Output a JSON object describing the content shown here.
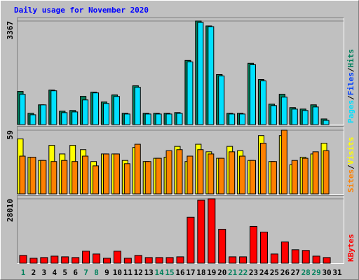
{
  "chart_data": [
    {
      "type": "bar",
      "title": "Daily usage for November 2020",
      "ylim": [
        0,
        3367
      ],
      "yticks": [
        3367
      ],
      "series": [
        {
          "name": "Hits",
          "color": "#00805c",
          "values": [
            1076,
            366,
            641,
            1122,
            435,
            458,
            916,
            1054,
            733,
            962,
            366,
            1260,
            366,
            366,
            366,
            389,
            2084,
            3367,
            3207,
            1626,
            366,
            366,
            1993,
            1466,
            664,
            985,
            550,
            504,
            641,
            183,
            null
          ]
        },
        {
          "name": "Files",
          "color": "#0040ff",
          "values": [
            1076,
            366,
            641,
            1122,
            435,
            458,
            916,
            1054,
            733,
            962,
            366,
            1260,
            366,
            366,
            366,
            389,
            2084,
            3367,
            3207,
            1626,
            366,
            366,
            1993,
            1466,
            664,
            985,
            550,
            504,
            641,
            183,
            null
          ]
        },
        {
          "name": "Pages",
          "color": "#00e0ff",
          "values": [
            985,
            320,
            641,
            1099,
            389,
            412,
            802,
            1031,
            687,
            916,
            344,
            1214,
            344,
            344,
            344,
            366,
            2038,
            3321,
            3184,
            1580,
            344,
            344,
            1947,
            1420,
            618,
            893,
            504,
            458,
            573,
            137,
            null
          ]
        }
      ],
      "legend_separator": "/"
    },
    {
      "type": "bar",
      "ylim": [
        0,
        59
      ],
      "yticks": [
        59
      ],
      "series": [
        {
          "name": "Visits",
          "color": "#ffff00",
          "values": [
            51,
            34,
            31,
            45,
            37,
            45,
            41,
            30,
            37,
            37,
            31,
            43,
            30,
            33,
            34,
            44,
            30,
            46,
            39,
            33,
            44,
            40,
            31,
            54,
            30,
            54,
            27,
            34,
            37,
            47,
            null
          ]
        },
        {
          "name": "Sites",
          "color": "#ff8000",
          "values": [
            35,
            34,
            31,
            30,
            31,
            30,
            35,
            26,
            37,
            37,
            28,
            46,
            30,
            33,
            40,
            41,
            35,
            41,
            37,
            33,
            39,
            35,
            31,
            47,
            30,
            59,
            31,
            33,
            39,
            40,
            null
          ]
        }
      ],
      "legend_separator": "/"
    },
    {
      "type": "bar",
      "ylim": [
        0,
        28010
      ],
      "yticks": [
        28010
      ],
      "series": [
        {
          "name": "KBytes",
          "color": "#ff0000",
          "values": [
            3386,
            2155,
            2462,
            3078,
            2770,
            2462,
            5233,
            4001,
            2155,
            5233,
            2155,
            3386,
            2462,
            2462,
            2462,
            2770,
            20007,
            27394,
            28010,
            14774,
            2770,
            2770,
            16006,
            13544,
            4001,
            9234,
            5848,
            5540,
            3078,
            2462,
            null
          ]
        }
      ],
      "categories": [
        "1",
        "2",
        "3",
        "4",
        "5",
        "6",
        "7",
        "8",
        "9",
        "10",
        "11",
        "12",
        "13",
        "14",
        "15",
        "16",
        "17",
        "18",
        "19",
        "20",
        "21",
        "22",
        "23",
        "24",
        "25",
        "26",
        "27",
        "28",
        "29",
        "30",
        "31"
      ],
      "weekend_days": [
        0,
        6,
        7,
        13,
        14,
        20,
        21,
        27,
        28
      ],
      "weekend_color": "#00805c"
    }
  ]
}
